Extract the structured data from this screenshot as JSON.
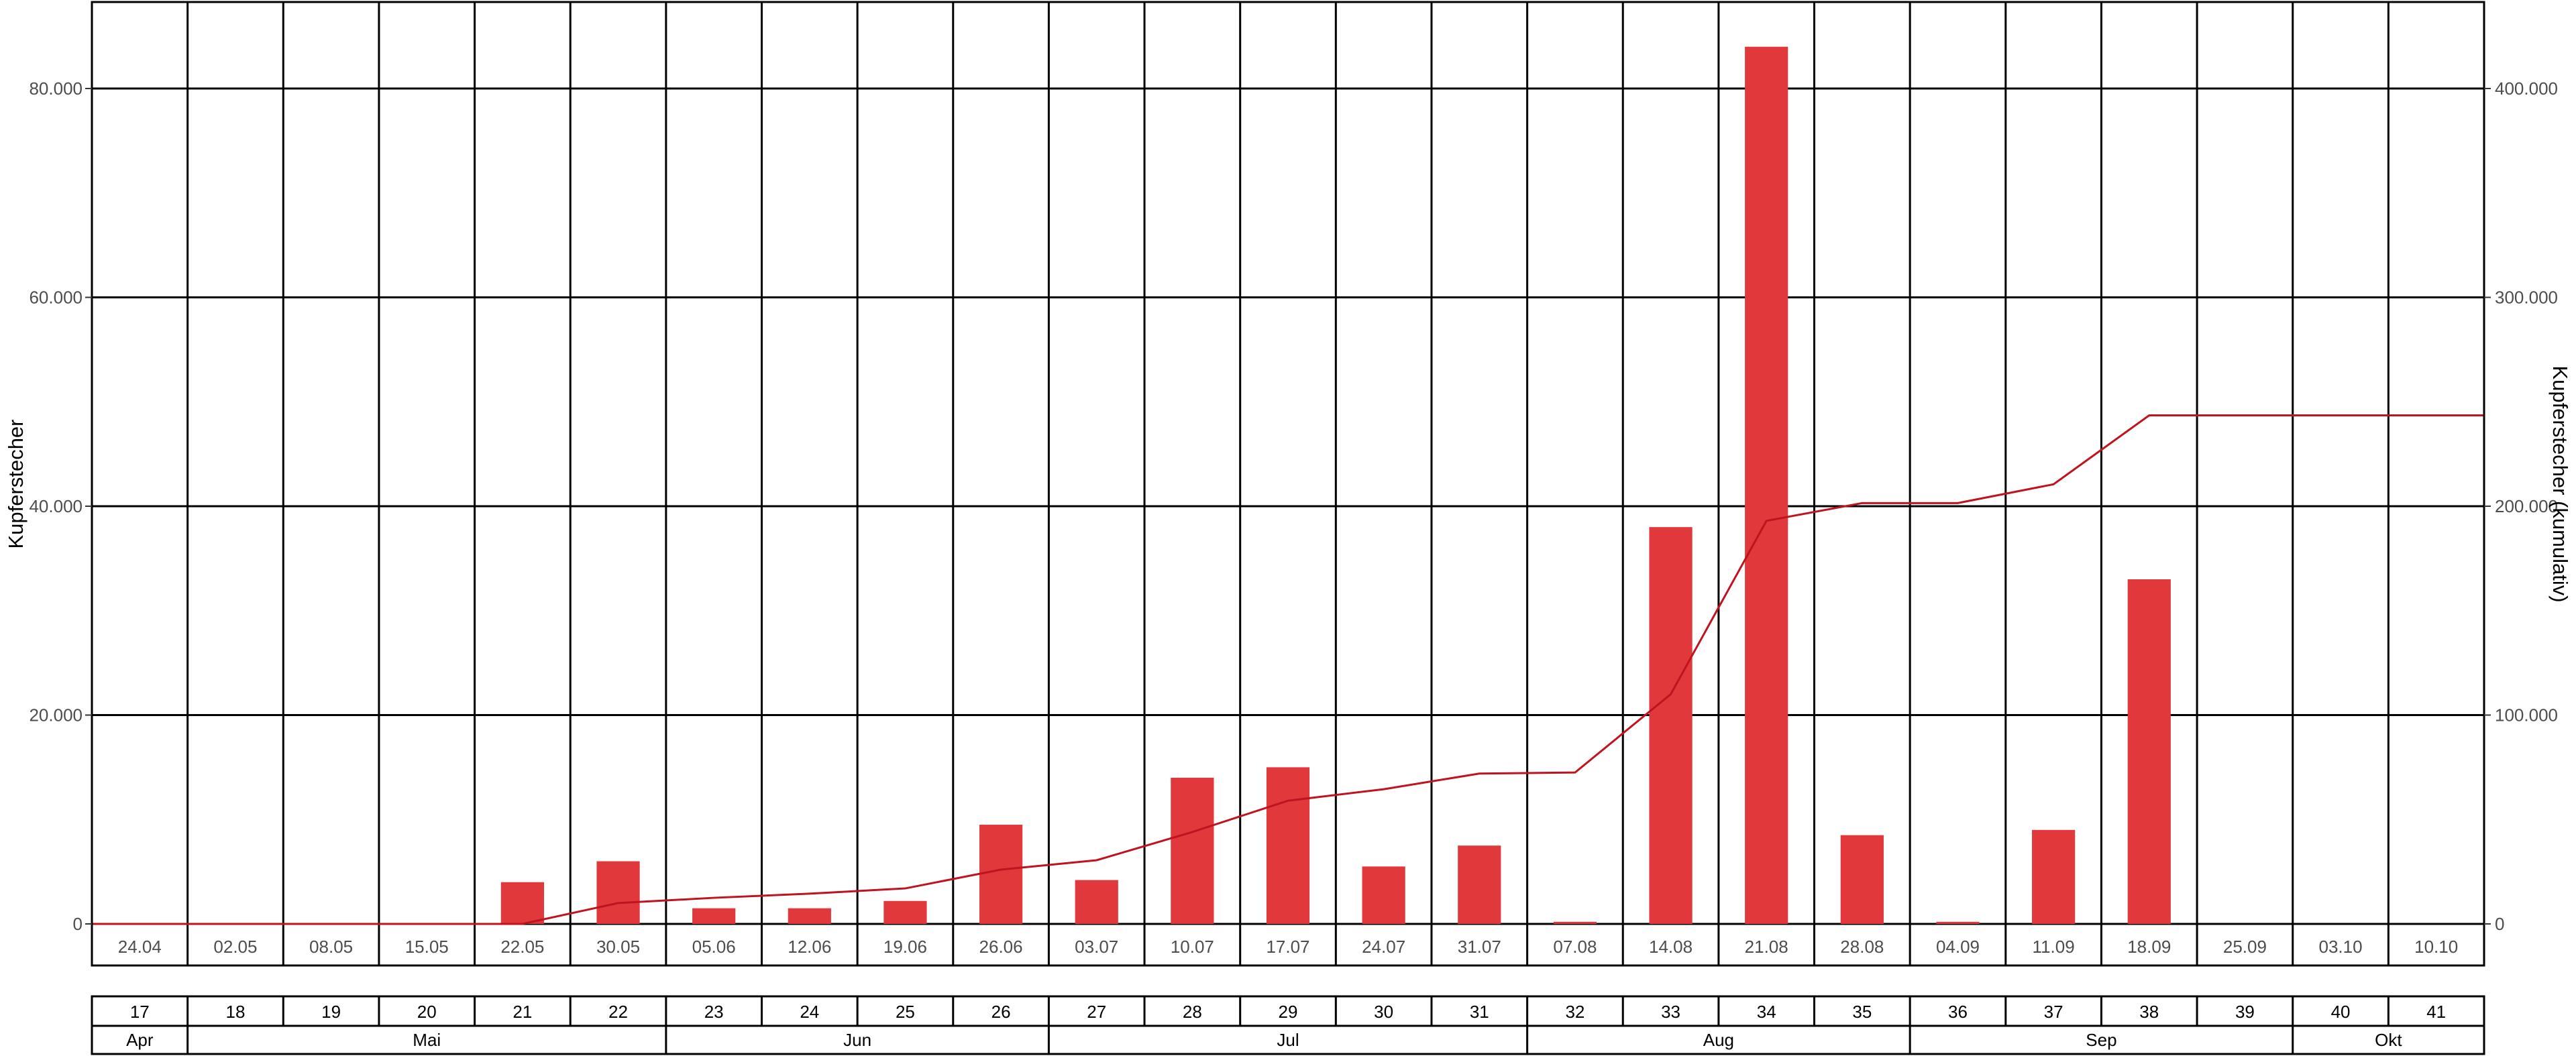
{
  "chart_data": {
    "type": "bar+line",
    "title": "",
    "ylabel_left": "Kupferstecher",
    "ylabel_right": "Kupferstecher (kumulativ)",
    "ylim_left": [
      0,
      80000
    ],
    "ylim_right": [
      0,
      400000
    ],
    "yticks_left": [
      0,
      20000,
      40000,
      60000,
      80000
    ],
    "yticks_left_labels": [
      "0",
      "20.000",
      "40.000",
      "60.000",
      "80.000"
    ],
    "yticks_right": [
      0,
      100000,
      200000,
      300000,
      400000
    ],
    "yticks_right_labels": [
      "0",
      "100.000",
      "200.000",
      "300.000",
      "400.000"
    ],
    "dates": [
      "24.04",
      "02.05",
      "08.05",
      "15.05",
      "22.05",
      "30.05",
      "05.06",
      "12.06",
      "19.06",
      "26.06",
      "03.07",
      "10.07",
      "17.07",
      "24.07",
      "31.07",
      "07.08",
      "14.08",
      "21.08",
      "28.08",
      "04.09",
      "11.09",
      "18.09",
      "25.09",
      "03.10",
      "10.10"
    ],
    "weeks": [
      "17",
      "18",
      "19",
      "20",
      "21",
      "22",
      "23",
      "24",
      "25",
      "26",
      "27",
      "28",
      "29",
      "30",
      "31",
      "32",
      "33",
      "34",
      "35",
      "36",
      "37",
      "38",
      "39",
      "40",
      "41"
    ],
    "months": [
      {
        "label": "Apr",
        "start": 0,
        "span": 1
      },
      {
        "label": "Mai",
        "start": 1,
        "span": 5
      },
      {
        "label": "Jun",
        "start": 6,
        "span": 4
      },
      {
        "label": "Jul",
        "start": 10,
        "span": 5
      },
      {
        "label": "Aug",
        "start": 15,
        "span": 4
      },
      {
        "label": "Sep",
        "start": 19,
        "span": 4
      },
      {
        "label": "Okt",
        "start": 23,
        "span": 2
      }
    ],
    "series": [
      {
        "type": "bar",
        "axis": "left",
        "values": [
          0,
          0,
          0,
          0,
          4000,
          6000,
          1500,
          1500,
          2200,
          9500,
          4200,
          14000,
          15000,
          5500,
          7500,
          200,
          38000,
          84000,
          8500,
          200,
          9000,
          33000,
          0,
          0,
          0
        ]
      },
      {
        "type": "line",
        "axis": "right",
        "values": [
          0,
          0,
          0,
          0,
          0,
          10000,
          12500,
          14500,
          17000,
          26000,
          30500,
          44000,
          59000,
          64500,
          72000,
          72500,
          110000,
          193000,
          201500,
          201500,
          210500,
          243500,
          243500,
          243500,
          243500
        ]
      }
    ],
    "colors": {
      "bar": "#e0383b",
      "line": "#c1121f",
      "grid": "#000000"
    },
    "grid": true
  }
}
